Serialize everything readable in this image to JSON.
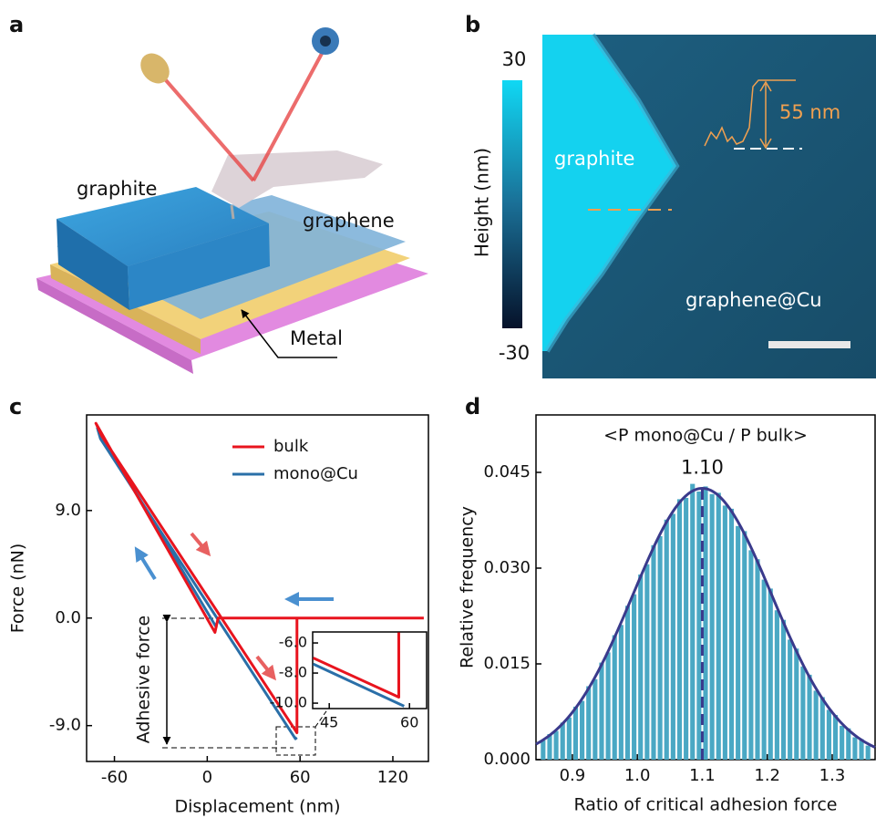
{
  "illustration": {
    "label": "a",
    "graphite": "graphite",
    "graphene": "graphene",
    "metal": "Metal"
  },
  "afm_image": {
    "label": "b",
    "colorbar_label": "Height (nm)",
    "colorbar_max": 30,
    "colorbar_min": -30,
    "graphite": "graphite",
    "substrate": "graphene@Cu",
    "step_height": "55 nm"
  },
  "chart_data": [
    {
      "label": "c",
      "type": "line",
      "xlabel": "Displacement (nm)",
      "ylabel": "Force (nN)",
      "xlim": [
        -78,
        143
      ],
      "ylim": [
        -12,
        17
      ],
      "xticks": [
        -60,
        0,
        60,
        120
      ],
      "yticks": [
        {
          "value": -9,
          "label": "-9.0"
        },
        {
          "value": 0,
          "label": "0.0"
        },
        {
          "value": 9,
          "label": "9.0"
        }
      ],
      "legend": "upper right",
      "annotation": "Adhesive force",
      "series": [
        {
          "name": "bulk",
          "color": "#e8141e",
          "x": [
            140,
            7,
            5,
            -72,
            -68,
            57,
            58,
            58
          ],
          "values": [
            0,
            0,
            -1.2,
            16.3,
            15.2,
            -9.4,
            -9.6,
            0
          ]
        },
        {
          "name": "mono@Cu",
          "color": "#2a6fa8",
          "x": [
            6,
            -71,
            -69,
            57,
            58
          ],
          "values": [
            -0.8,
            15.9,
            15.0,
            -10.1,
            -10.0
          ]
        }
      ],
      "inset": {
        "xlim": [
          41.9,
          63.2
        ],
        "ylim": [
          -10.36,
          -5.27
        ],
        "xticks": [
          45,
          60
        ],
        "yticks": [
          {
            "value": -10,
            "label": "-10.0"
          },
          {
            "value": -8,
            "label": "-8.0"
          },
          {
            "value": -6,
            "label": "-6.0"
          }
        ],
        "series": [
          {
            "color": "#e8141e",
            "x": [
              42,
              58,
              58
            ],
            "values": [
              -7.0,
              -9.6,
              -5.3
            ]
          },
          {
            "color": "#2a6fa8",
            "x": [
              42,
              59
            ],
            "values": [
              -7.4,
              -10.2
            ]
          }
        ]
      }
    },
    {
      "label": "d",
      "type": "histogram",
      "title": "<P mono@Cu / P bulk>",
      "xlabel": "Ratio of critical adhesion force",
      "ylabel": "Relative frequency",
      "xlim": [
        0.844,
        1.366
      ],
      "ylim": [
        0,
        0.054
      ],
      "xticks": [
        0.9,
        {
          "value": 1,
          "label": "1.0"
        },
        1.1,
        1.2,
        1.3
      ],
      "yticks": [
        {
          "value": 0,
          "label": "0.000"
        },
        0.015,
        {
          "value": 0.03,
          "label": "0.030"
        },
        0.045
      ],
      "color": "#4aa8c4",
      "bins": [
        0.85,
        0.86,
        0.87,
        0.88,
        0.89,
        0.9,
        0.91,
        0.92,
        0.93,
        0.94,
        0.95,
        0.96,
        0.97,
        0.98,
        0.99,
        1.0,
        1.01,
        1.02,
        1.03,
        1.04,
        1.05,
        1.06,
        1.07,
        1.08,
        1.09,
        1.1,
        1.11,
        1.12,
        1.13,
        1.14,
        1.15,
        1.16,
        1.17,
        1.18,
        1.19,
        1.2,
        1.21,
        1.22,
        1.23,
        1.24,
        1.25,
        1.26,
        1.27,
        1.28,
        1.29,
        1.3,
        1.31,
        1.32,
        1.33,
        1.34,
        1.35,
        1.36
      ],
      "values": [
        0.003,
        0.004,
        0.0045,
        0.0058,
        0.0066,
        0.0083,
        0.0092,
        0.0115,
        0.0126,
        0.0152,
        0.0168,
        0.0195,
        0.0211,
        0.0241,
        0.0259,
        0.029,
        0.0306,
        0.0336,
        0.035,
        0.0376,
        0.0385,
        0.0408,
        0.041,
        0.0432,
        0.042,
        0.0428,
        0.0416,
        0.0418,
        0.0398,
        0.0393,
        0.0366,
        0.0358,
        0.0328,
        0.0314,
        0.0282,
        0.0268,
        0.0234,
        0.0219,
        0.0188,
        0.0174,
        0.0146,
        0.0133,
        0.0108,
        0.0098,
        0.0078,
        0.007,
        0.0053,
        0.0049,
        0.0035,
        0.0032,
        0.0022
      ],
      "mean": {
        "value": 1.1,
        "label": "1.10"
      },
      "fit": {
        "color": "#3a3a8c",
        "amplitude": 0.0425,
        "sigma": 0.107
      }
    }
  ]
}
